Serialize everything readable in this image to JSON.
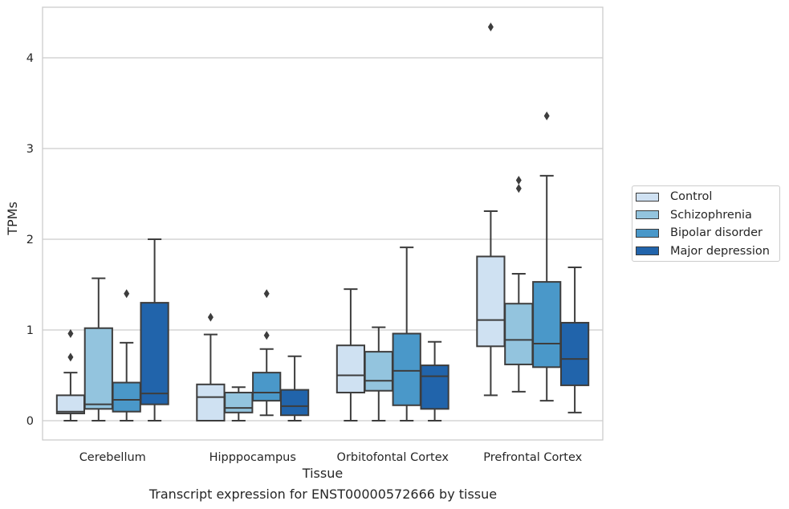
{
  "caption": "Transcript expression for ENST00000572666 by tissue",
  "chart_data": {
    "type": "box",
    "title": "",
    "xlabel": "Tissue",
    "ylabel": "TPMs",
    "ylim": [
      -0.21,
      4.57
    ],
    "yticks": [
      0,
      1,
      2,
      3,
      4
    ],
    "ytick_labels": [
      "0",
      "1",
      "2",
      "3",
      "4"
    ],
    "grid": "horizontal",
    "legend_position": "right",
    "categories": [
      "Cerebellum",
      "Hipppocampus",
      "Orbitofontal Cortex",
      "Prefrontal Cortex"
    ],
    "series": [
      {
        "name": "Control",
        "color": "#cfe1f2",
        "boxes": [
          {
            "q1": 0.08,
            "median": 0.1,
            "q3": 0.28,
            "whislo": 0.0,
            "whishi": 0.53,
            "fliers": [
              0.96,
              0.7
            ]
          },
          {
            "q1": 0.0,
            "median": 0.26,
            "q3": 0.4,
            "whislo": 0.0,
            "whishi": 0.95,
            "fliers": [
              1.14
            ]
          },
          {
            "q1": 0.31,
            "median": 0.5,
            "q3": 0.83,
            "whislo": 0.0,
            "whishi": 1.45,
            "fliers": []
          },
          {
            "q1": 0.82,
            "median": 1.11,
            "q3": 1.81,
            "whislo": 0.28,
            "whishi": 2.31,
            "fliers": [
              4.34
            ]
          }
        ]
      },
      {
        "name": "Schizophrenia",
        "color": "#93c4de",
        "boxes": [
          {
            "q1": 0.13,
            "median": 0.18,
            "q3": 1.02,
            "whislo": 0.0,
            "whishi": 1.57,
            "fliers": []
          },
          {
            "q1": 0.09,
            "median": 0.14,
            "q3": 0.31,
            "whislo": 0.0,
            "whishi": 0.37,
            "fliers": []
          },
          {
            "q1": 0.33,
            "median": 0.44,
            "q3": 0.76,
            "whislo": 0.0,
            "whishi": 1.03,
            "fliers": []
          },
          {
            "q1": 0.62,
            "median": 0.89,
            "q3": 1.29,
            "whislo": 0.32,
            "whishi": 1.62,
            "fliers": [
              2.65,
              2.56
            ]
          }
        ]
      },
      {
        "name": "Bipolar disorder",
        "color": "#4a98c9",
        "boxes": [
          {
            "q1": 0.1,
            "median": 0.23,
            "q3": 0.42,
            "whislo": 0.0,
            "whishi": 0.86,
            "fliers": [
              1.4
            ]
          },
          {
            "q1": 0.22,
            "median": 0.31,
            "q3": 0.53,
            "whislo": 0.06,
            "whishi": 0.79,
            "fliers": [
              1.4,
              0.94
            ]
          },
          {
            "q1": 0.17,
            "median": 0.55,
            "q3": 0.96,
            "whislo": 0.0,
            "whishi": 1.91,
            "fliers": []
          },
          {
            "q1": 0.59,
            "median": 0.85,
            "q3": 1.53,
            "whislo": 0.22,
            "whishi": 2.7,
            "fliers": [
              3.36
            ]
          }
        ]
      },
      {
        "name": "Major depression",
        "color": "#2164ab",
        "boxes": [
          {
            "q1": 0.18,
            "median": 0.3,
            "q3": 1.3,
            "whislo": 0.0,
            "whishi": 2.0,
            "fliers": []
          },
          {
            "q1": 0.06,
            "median": 0.16,
            "q3": 0.34,
            "whislo": 0.0,
            "whishi": 0.71,
            "fliers": []
          },
          {
            "q1": 0.13,
            "median": 0.49,
            "q3": 0.61,
            "whislo": 0.0,
            "whishi": 0.87,
            "fliers": []
          },
          {
            "q1": 0.39,
            "median": 0.68,
            "q3": 1.08,
            "whislo": 0.09,
            "whishi": 1.69,
            "fliers": []
          }
        ]
      }
    ]
  }
}
